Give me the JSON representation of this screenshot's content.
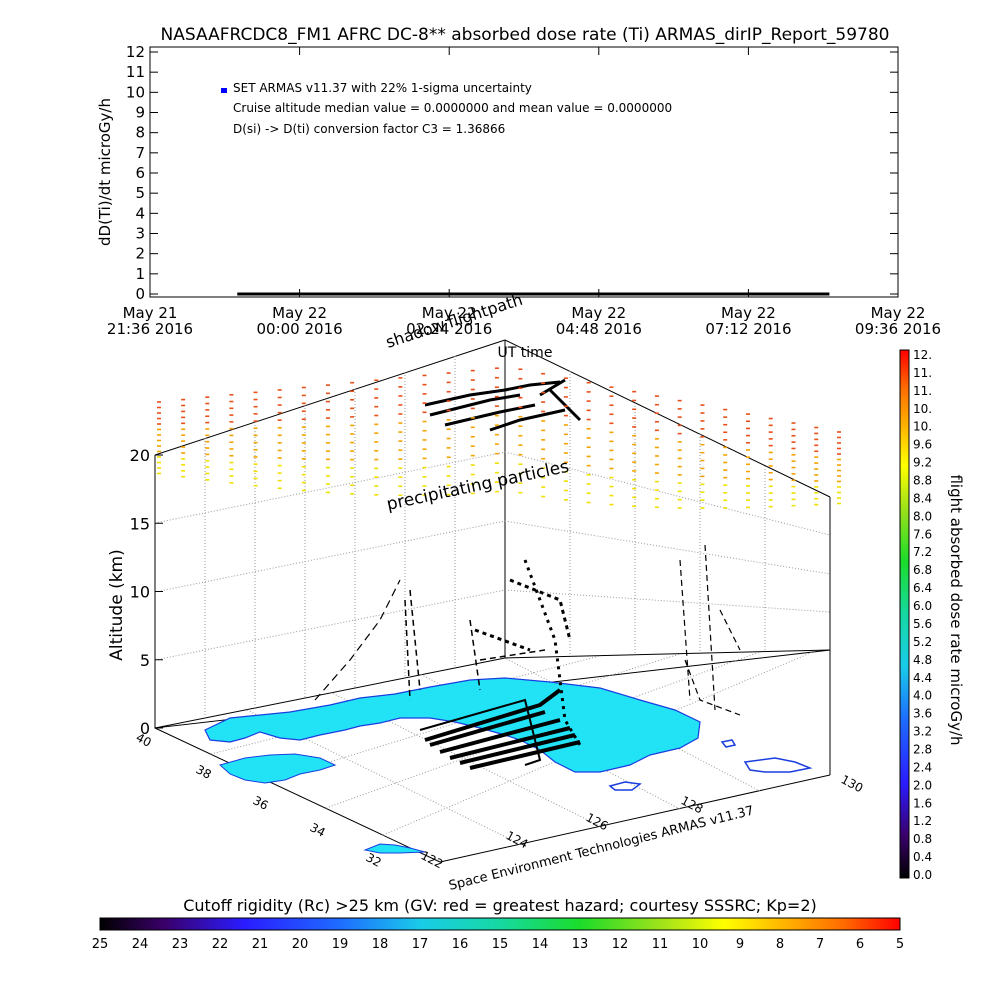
{
  "chart_data": [
    {
      "type": "scatter",
      "title": "NASAAFRCDC8_FM1 AFRC DC-8** absorbed dose rate (Ti) ARMAS_dirIP_Report_59780",
      "ylabel": "dD(Ti)/dt microGy/h",
      "xlabel": "UT time",
      "ylim": [
        0,
        12
      ],
      "yticks": [
        "0",
        "1",
        "2",
        "3",
        "4",
        "5",
        "6",
        "7",
        "8",
        "9",
        "10",
        "11",
        "12"
      ],
      "xticks": [
        [
          "May 21",
          "21:36 2016"
        ],
        [
          "May 22",
          "00:00 2016"
        ],
        [
          "May 22",
          "02:24 2016"
        ],
        [
          "May 22",
          "04:48 2016"
        ],
        [
          "May 22",
          "07:12 2016"
        ],
        [
          "May 22",
          "09:36 2016"
        ]
      ],
      "legend": {
        "placement": "top-left",
        "marker_color": "#0000ff",
        "lines": [
          "SET ARMAS v11.37 with 22% 1-sigma uncertainty",
          "Cruise altitude median value = 0.0000000 and mean value = 0.0000000",
          "D(si) -> D(ti) conversion factor C3 = 1.36866"
        ]
      },
      "series": [
        {
          "x_range": [
            "May 21 23:00 2016",
            "May 22 08:30 2016"
          ],
          "y": 0
        }
      ]
    },
    {
      "type": "scatter",
      "ylabel": "Altitude (km)",
      "zticks": [
        "0",
        "5",
        "10",
        "15",
        "20"
      ],
      "lat_ticks": [
        "40",
        "38",
        "36",
        "34",
        "32"
      ],
      "lon_ticks": [
        "122",
        "124",
        "126",
        "128",
        "130"
      ],
      "annotations": [
        "shadow",
        "flightpath",
        "precipitating particles"
      ],
      "credit": "Space Environment Technologies ARMAS v11.37",
      "land_color": "#22e3f5",
      "coast_color": "#1a3de0"
    }
  ],
  "colorbar_right": {
    "label": "flight absorbed dose rate microGy/h",
    "ticks": [
      "12.",
      "11.",
      "11.",
      "10.",
      "10.",
      "9.6",
      "9.2",
      "8.8",
      "8.4",
      "8.0",
      "7.6",
      "7.2",
      "6.8",
      "6.4",
      "6.0",
      "5.6",
      "5.2",
      "4.8",
      "4.4",
      "4.0",
      "3.6",
      "3.2",
      "2.8",
      "2.4",
      "2.0",
      "1.6",
      "1.2",
      "0.8",
      "0.4",
      "0.0"
    ]
  },
  "colorbar_bottom": {
    "title": "Cutoff rigidity (Rc) >25 km (GV: red = greatest hazard; courtesy SSSRC; Kp=2)",
    "ticks": [
      "25",
      "24",
      "23",
      "22",
      "21",
      "20",
      "19",
      "18",
      "17",
      "16",
      "15",
      "14",
      "13",
      "12",
      "11",
      "10",
      "9",
      "8",
      "7",
      "6",
      "5"
    ]
  }
}
